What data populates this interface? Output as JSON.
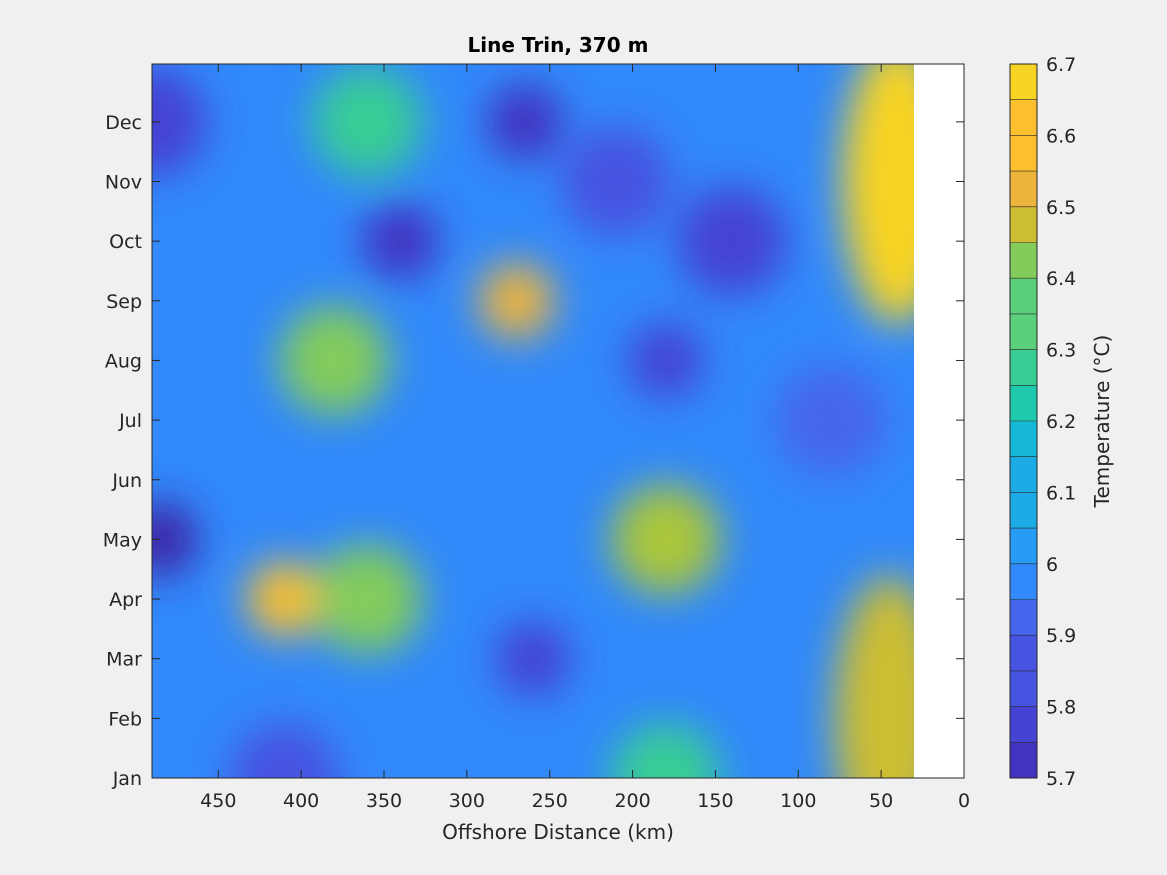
{
  "chart_data": {
    "type": "heatmap",
    "subtype": "filled-contour",
    "title": "Line Trin, 370 m",
    "xlabel": "Offshore Distance (km)",
    "ylabel": "",
    "x_axis_reversed": true,
    "xlim": [
      0,
      490
    ],
    "x_ticks": [
      450,
      400,
      350,
      300,
      250,
      200,
      150,
      100,
      50,
      0
    ],
    "y_ticks": [
      "Jan",
      "Feb",
      "Mar",
      "Apr",
      "May",
      "Jun",
      "Jul",
      "Aug",
      "Sep",
      "Oct",
      "Nov",
      "Dec"
    ],
    "no_data_below_km": 30,
    "colorbar": {
      "label": "Temperature (°C)",
      "ticks": [
        5.7,
        5.8,
        5.9,
        6,
        6.1,
        6.2,
        6.3,
        6.4,
        6.5,
        6.6,
        6.7
      ],
      "tick_labels": [
        "5.7",
        "5.8",
        "5.9",
        "6",
        "6.1",
        "6.2",
        "6.3",
        "6.4",
        "6.5",
        "6.6",
        "6.7"
      ],
      "levels": 20,
      "colormap": "parula",
      "colors": [
        "#3e26a8",
        "#4233c0",
        "#4543d3",
        "#4753e1",
        "#4665ec",
        "#3f77f4",
        "#3189fa",
        "#269cf4",
        "#1dabe6",
        "#15b8d6",
        "#0ac2c2",
        "#1ec9ac",
        "#37cd95",
        "#5bcf7a",
        "#83cc5b",
        "#aac63b",
        "#cdbd33",
        "#ecb43c",
        "#fbbf2f",
        "#f8d424",
        "#f5ea1c"
      ]
    },
    "features": [
      {
        "label": "warm core",
        "x_km": 270,
        "month": "Sep",
        "value": 6.55
      },
      {
        "label": "warm core",
        "x_km": 410,
        "month": "Apr",
        "value": 6.6
      },
      {
        "label": "warm area",
        "x_km": 380,
        "month": "Aug",
        "value": 6.4
      },
      {
        "label": "warm area",
        "x_km": 180,
        "month": "May",
        "value": 6.45
      },
      {
        "label": "warm area",
        "x_km": 360,
        "month": "Apr",
        "value": 6.4
      },
      {
        "label": "warm area",
        "x_km": 360,
        "month": "Dec",
        "value": 6.3
      },
      {
        "label": "warm area",
        "x_km": 180,
        "month": "Jan",
        "value": 6.3
      },
      {
        "label": "coastal warm band",
        "x_km": 40,
        "month": "Nov",
        "value": 6.65
      },
      {
        "label": "coastal warm band",
        "x_km": 45,
        "month": "Feb",
        "value": 6.5
      },
      {
        "label": "cold core",
        "x_km": 485,
        "month": "May",
        "value": 5.72
      },
      {
        "label": "cold core",
        "x_km": 340,
        "month": "Oct",
        "value": 5.75
      },
      {
        "label": "cold core",
        "x_km": 265,
        "month": "Dec",
        "value": 5.75
      },
      {
        "label": "cold core",
        "x_km": 260,
        "month": "Mar",
        "value": 5.78
      },
      {
        "label": "cold core",
        "x_km": 180,
        "month": "Aug",
        "value": 5.8
      },
      {
        "label": "cold area",
        "x_km": 210,
        "month": "Nov",
        "value": 5.85
      },
      {
        "label": "cold area",
        "x_km": 140,
        "month": "Oct",
        "value": 5.82
      },
      {
        "label": "cold area",
        "x_km": 80,
        "month": "Jul",
        "value": 5.88
      },
      {
        "label": "cold area",
        "x_km": 490,
        "month": "Dec",
        "value": 5.8
      },
      {
        "label": "cold area",
        "x_km": 410,
        "month": "Jan",
        "value": 5.85
      }
    ]
  }
}
